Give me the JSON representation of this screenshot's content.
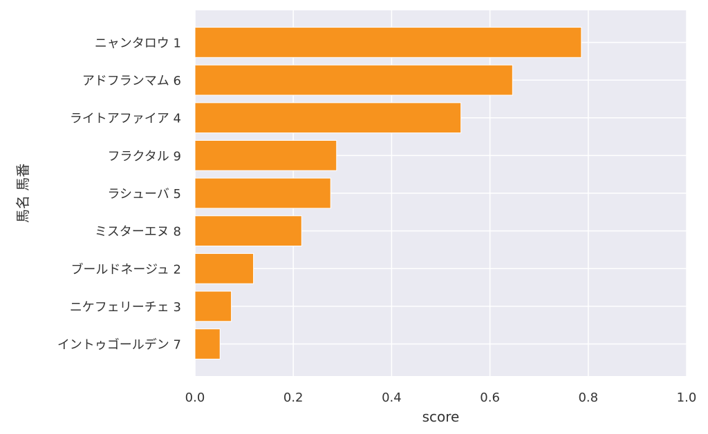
{
  "chart_data": {
    "type": "bar",
    "orientation": "horizontal",
    "categories": [
      "ニャンタロウ 1",
      "アドフランマム 6",
      "ライトアファイア 4",
      "フラクタル 9",
      "ラシューバ 5",
      "ミスターエヌ 8",
      "ブールドネージュ 2",
      "ニケフェリーチェ 3",
      "イントゥゴールデン 7"
    ],
    "values": [
      0.786,
      0.646,
      0.541,
      0.288,
      0.276,
      0.217,
      0.119,
      0.074,
      0.051
    ],
    "title": "",
    "xlabel": "score",
    "ylabel": "馬名 馬番",
    "xlim": [
      0,
      1.0
    ],
    "x_ticks": [
      "0.0",
      "0.2",
      "0.4",
      "0.6",
      "0.8",
      "1.0"
    ],
    "grid": true,
    "colors": {
      "bar": "#f7931e",
      "bar_edge": "#ffffff",
      "plot_background": "#eaeaf2",
      "grid": "#ffffff"
    }
  }
}
